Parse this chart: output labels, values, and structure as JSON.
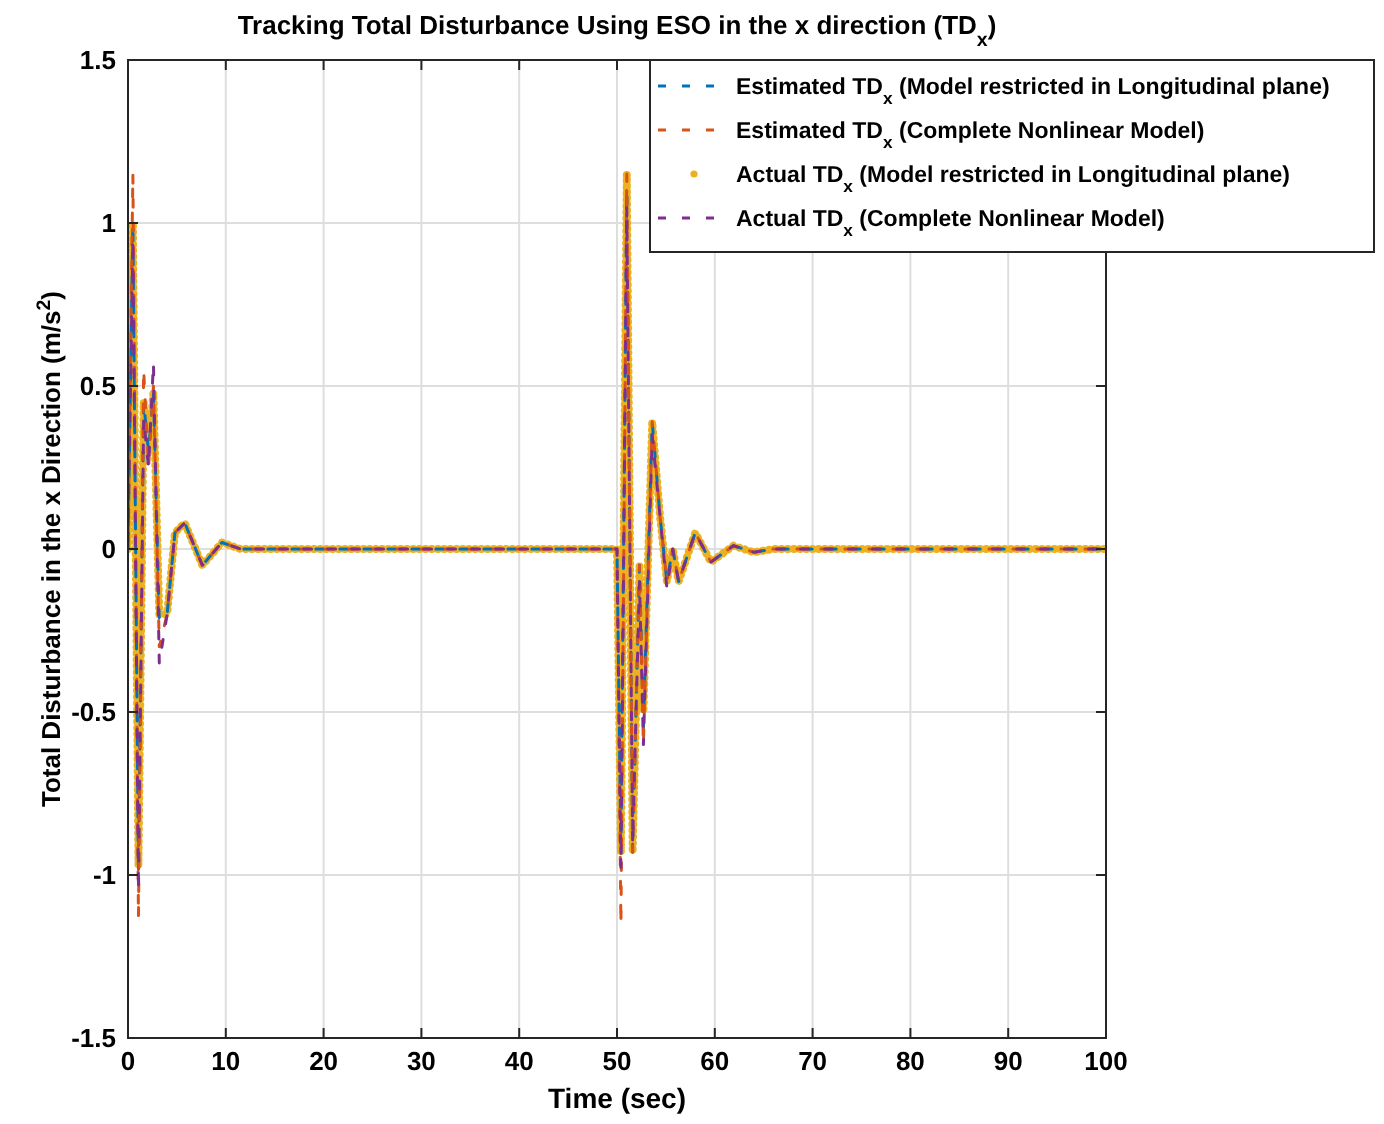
{
  "chart_data": {
    "type": "line",
    "title": "Tracking Total Disturbance Using ESO in the x direction (TD$_{x}$)",
    "xlabel": "Time (sec)",
    "ylabel": "Total Disturbance in the x Direction (m/s$^{2}$)",
    "x": [
      0,
      0.5,
      1.07,
      1.6,
      2.1,
      2.6,
      3.2,
      4,
      4.8,
      5.8,
      7.6,
      9.6,
      11.5,
      50,
      50.4,
      51,
      51.6,
      52.3,
      52.7,
      53.6,
      54.4,
      55.1,
      55.7,
      56.3,
      58,
      59.6,
      61.9,
      64,
      66,
      100
    ],
    "series": [
      {
        "name": "Estimated TD$_{x}$ (Model restricted in Longitudinal plane)",
        "color": "#0072bd",
        "line_style": "dashed",
        "values": [
          0,
          1.0,
          -1.0,
          0.45,
          0.3,
          0.48,
          -0.22,
          -0.2,
          0.05,
          0.08,
          -0.05,
          0.02,
          0,
          0,
          -0.93,
          1.1,
          -0.93,
          -0.05,
          -0.55,
          0.39,
          0.1,
          -0.1,
          0,
          -0.1,
          0.05,
          -0.04,
          0.01,
          -0.01,
          0,
          0
        ]
      },
      {
        "name": "Estimated TD$_{x}$ (Complete Nonlinear Model)",
        "color": "#d95319",
        "line_style": "dashed",
        "values": [
          0,
          1.15,
          -1.13,
          0.55,
          0.25,
          0.5,
          -0.3,
          -0.2,
          0.05,
          0.08,
          -0.05,
          0.02,
          0,
          0,
          -1.15,
          1.15,
          -0.93,
          -0.05,
          -0.6,
          0.39,
          0.1,
          -0.1,
          0,
          -0.1,
          0.05,
          -0.04,
          0.01,
          -0.01,
          0,
          0
        ]
      },
      {
        "name": "Actual TD$_{x}$ (Model restricted in Longitudinal plane)",
        "color": "#edb120",
        "line_style": "dotted",
        "values": [
          0,
          1.0,
          -0.97,
          0.45,
          0.3,
          0.48,
          -0.2,
          -0.2,
          0.05,
          0.08,
          -0.05,
          0.02,
          0,
          0,
          -0.93,
          1.15,
          -0.93,
          -0.05,
          -0.5,
          0.39,
          0.1,
          -0.1,
          0,
          -0.1,
          0.05,
          -0.04,
          0.01,
          -0.01,
          0,
          0
        ]
      },
      {
        "name": "Actual TD$_{x}$ (Complete Nonlinear Model)",
        "color": "#7e2f8e",
        "line_style": "dashed",
        "values": [
          0,
          0.95,
          -1.05,
          0.4,
          0.25,
          0.57,
          -0.35,
          -0.2,
          0.05,
          0.08,
          -0.05,
          0.02,
          0,
          0,
          -0.98,
          1.05,
          -0.9,
          -0.1,
          -0.6,
          0.35,
          0.1,
          -0.12,
          0,
          -0.1,
          0.05,
          -0.04,
          0.01,
          -0.01,
          0,
          0
        ]
      }
    ],
    "xlim": [
      0,
      100
    ],
    "xticks": [
      0,
      10,
      20,
      30,
      40,
      50,
      60,
      70,
      80,
      90,
      100
    ],
    "ylim": [
      -1.5,
      1.5
    ],
    "yticks": [
      -1.5,
      -1,
      -0.5,
      0,
      0.5,
      1,
      1.5
    ],
    "grid": true,
    "legend": "top right"
  }
}
